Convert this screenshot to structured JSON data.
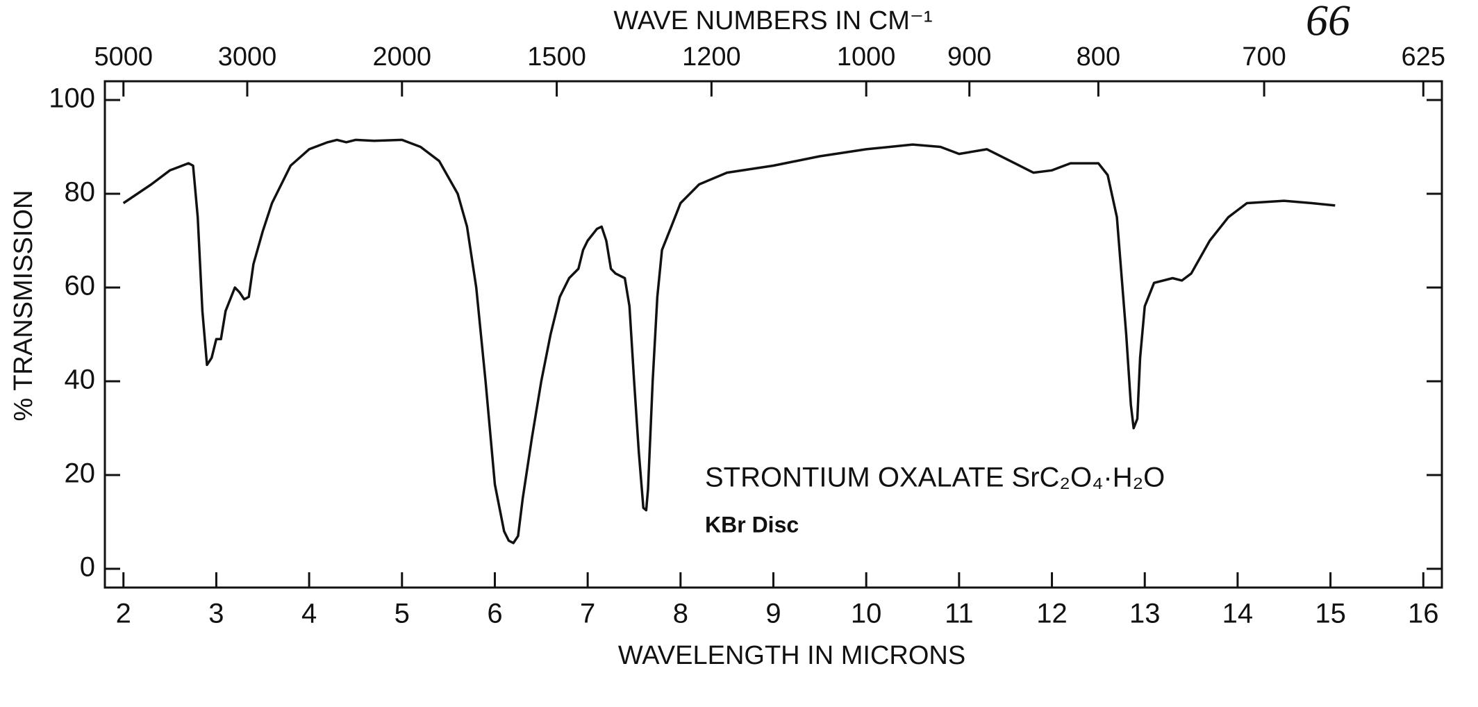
{
  "chart_data": {
    "type": "line",
    "title": "WAVE NUMBERS IN CM⁻¹",
    "x_label": "WAVELENGTH IN MICRONS",
    "y_label": "% TRANSMISSION",
    "annotations": [
      "STRONTIUM OXALATE SrC₂O₄·H₂O",
      "KBr Disc",
      "66"
    ],
    "color": "#111111",
    "xlim": [
      1.8,
      16.2
    ],
    "ylim": [
      -4,
      104
    ],
    "xticks": [
      2,
      3,
      4,
      5,
      6,
      7,
      8,
      9,
      10,
      11,
      12,
      13,
      14,
      15,
      16
    ],
    "yticks": [
      0,
      20,
      40,
      60,
      80,
      100
    ],
    "x2ticks": [
      5000,
      3000,
      2000,
      1500,
      1200,
      1000,
      900,
      800,
      700,
      625
    ],
    "x": [
      2,
      2.3,
      2.5,
      2.7,
      2.75,
      2.8,
      2.85,
      2.9,
      2.95,
      3.0,
      3.05,
      3.1,
      3.2,
      3.25,
      3.3,
      3.35,
      3.4,
      3.5,
      3.6,
      3.7,
      3.8,
      4.0,
      4.2,
      4.3,
      4.4,
      4.5,
      4.7,
      5.0,
      5.2,
      5.4,
      5.6,
      5.7,
      5.8,
      5.9,
      6.0,
      6.1,
      6.15,
      6.2,
      6.25,
      6.3,
      6.4,
      6.5,
      6.6,
      6.7,
      6.8,
      6.9,
      6.95,
      7.0,
      7.1,
      7.15,
      7.2,
      7.25,
      7.3,
      7.4,
      7.45,
      7.5,
      7.55,
      7.6,
      7.63,
      7.65,
      7.7,
      7.75,
      7.8,
      7.9,
      8.0,
      8.2,
      8.5,
      9.0,
      9.5,
      10.0,
      10.5,
      10.8,
      11.0,
      11.3,
      11.6,
      11.8,
      12.0,
      12.2,
      12.5,
      12.6,
      12.7,
      12.8,
      12.85,
      12.88,
      12.92,
      12.95,
      13.0,
      13.1,
      13.3,
      13.4,
      13.5,
      13.7,
      13.9,
      14.1,
      14.5,
      14.8,
      15.05
    ],
    "values": [
      78,
      82,
      85,
      86.5,
      86,
      75,
      55,
      43.5,
      45,
      49,
      49,
      55,
      60,
      59,
      57.5,
      58,
      65,
      72,
      78,
      82,
      86,
      89.5,
      91,
      91.5,
      91,
      91.5,
      91.3,
      91.5,
      90,
      87,
      80,
      73,
      60,
      40,
      18,
      8,
      6,
      5.5,
      7,
      15,
      28,
      40,
      50,
      58,
      62,
      64,
      68,
      70,
      72.5,
      73,
      70,
      64,
      63,
      62,
      56,
      40,
      25,
      13,
      12.5,
      17,
      40,
      58,
      68,
      73,
      78,
      82,
      84.5,
      86,
      88,
      89.5,
      90.5,
      90,
      88.5,
      89.5,
      86.5,
      84.5,
      85,
      86.5,
      86.5,
      84,
      75,
      50,
      35,
      30,
      32,
      45,
      56,
      61,
      62,
      61.5,
      63,
      70,
      75,
      78,
      78.5,
      78,
      77.5
    ]
  }
}
